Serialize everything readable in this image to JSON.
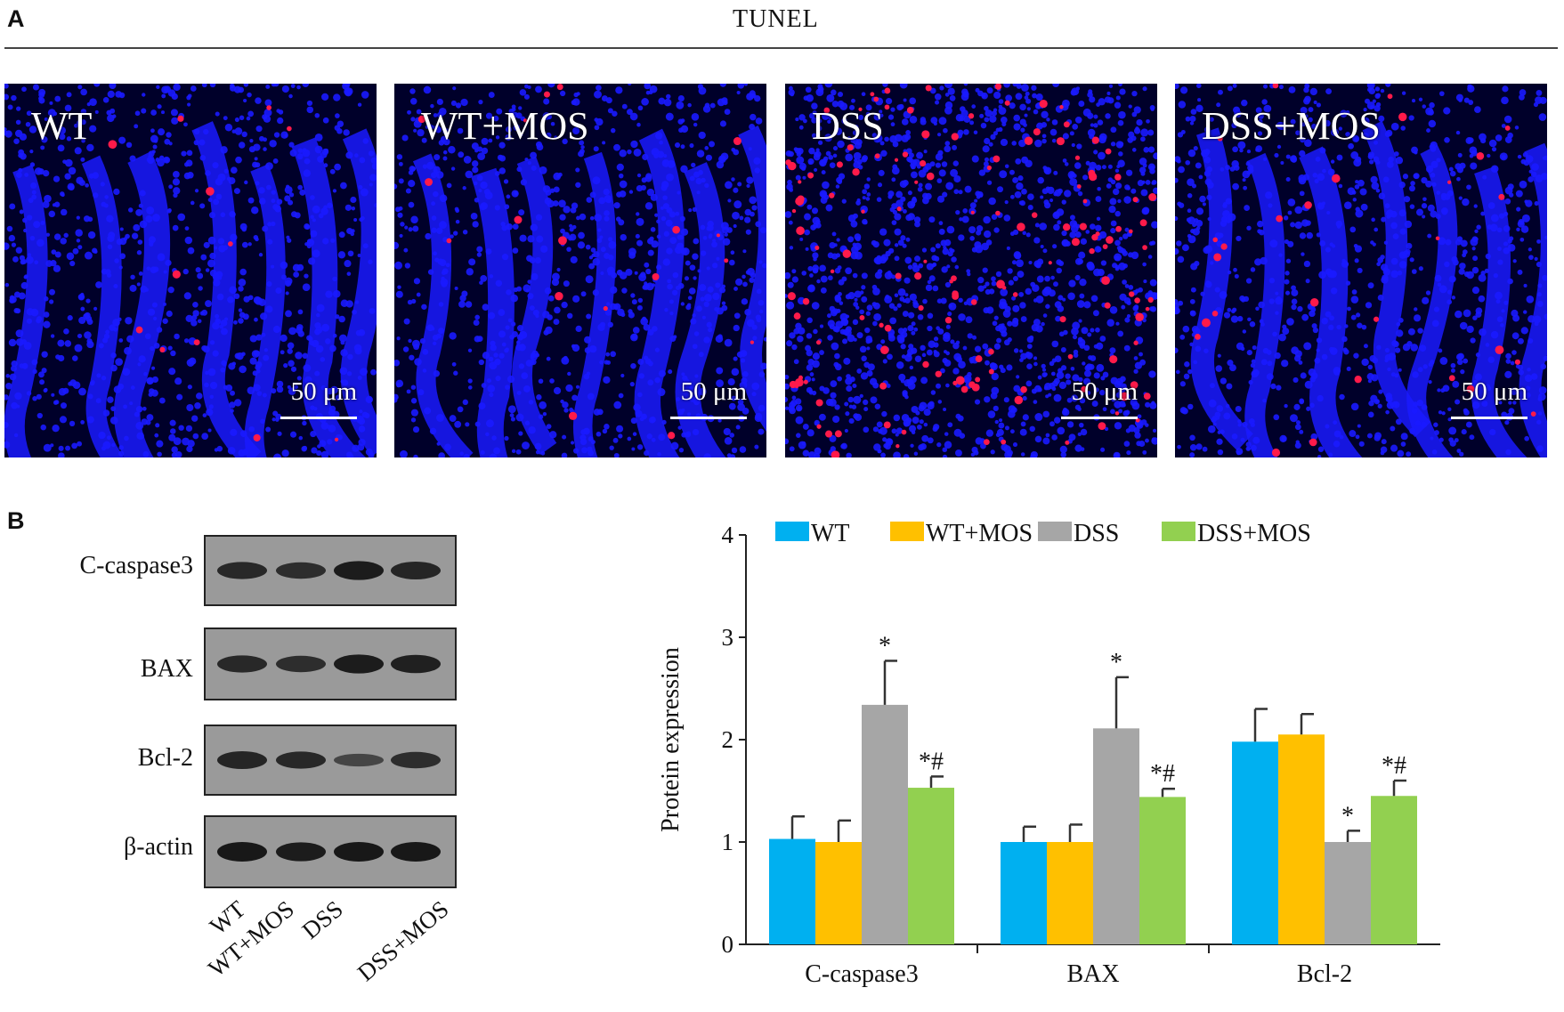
{
  "panel_a": {
    "letter": "A",
    "title": "TUNEL",
    "images": [
      {
        "label": "WT",
        "scale": "50 μm"
      },
      {
        "label": "WT+MOS",
        "scale": "50 μm"
      },
      {
        "label": "DSS",
        "scale": "50 μm"
      },
      {
        "label": "DSS+MOS",
        "scale": "50 μm"
      }
    ]
  },
  "panel_b": {
    "letter": "B",
    "blot_rows": [
      "C-caspase3",
      "BAX",
      "Bcl-2",
      "β-actin"
    ],
    "lane_labels": [
      "WT",
      "WT+MOS",
      "DSS",
      "DSS+MOS"
    ],
    "band_intensity": [
      [
        0.8,
        0.75,
        0.95,
        0.85
      ],
      [
        0.8,
        0.75,
        0.95,
        0.9
      ],
      [
        0.85,
        0.8,
        0.45,
        0.75
      ],
      [
        1.0,
        0.95,
        1.0,
        1.0
      ]
    ]
  },
  "chart_data": {
    "type": "bar",
    "categories": [
      "C-caspase3",
      "BAX",
      "Bcl-2"
    ],
    "ylabel": "Protein expression",
    "ylim": [
      0,
      4
    ],
    "yticks": [
      0,
      1,
      2,
      3,
      4
    ],
    "series": [
      {
        "name": "WT",
        "color": "#00b0f0",
        "values": [
          1.03,
          1.0,
          1.98
        ],
        "errors": [
          0.22,
          0.15,
          0.32
        ],
        "annotations": [
          "",
          "",
          ""
        ]
      },
      {
        "name": "WT+MOS",
        "color": "#ffc000",
        "values": [
          1.0,
          1.0,
          2.05
        ],
        "errors": [
          0.21,
          0.17,
          0.2
        ],
        "annotations": [
          "",
          "",
          ""
        ]
      },
      {
        "name": "DSS",
        "color": "#a6a6a6",
        "values": [
          2.34,
          2.11,
          1.0
        ],
        "errors": [
          0.43,
          0.5,
          0.11
        ],
        "annotations": [
          "*",
          "*",
          "*"
        ]
      },
      {
        "name": "DSS+MOS",
        "color": "#92d050",
        "values": [
          1.53,
          1.44,
          1.45
        ],
        "errors": [
          0.11,
          0.08,
          0.15
        ],
        "annotations": [
          "*#",
          "*#",
          "*#"
        ]
      }
    ]
  },
  "colors": {
    "nuclei": "#1a1aff",
    "tunel": "#ff1a4a",
    "background": "#00002a"
  }
}
